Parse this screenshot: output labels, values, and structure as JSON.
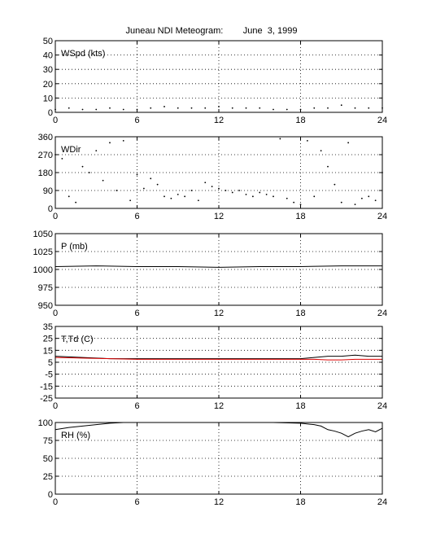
{
  "title": "Juneau NDI Meteogram:        June  3, 1999",
  "chart_data": [
    {
      "type": "scatter",
      "label": "WSpd (kts)",
      "ylim": [
        0,
        50
      ],
      "yticks": [
        0,
        10,
        20,
        30,
        40,
        50
      ],
      "xlim": [
        0,
        24
      ],
      "xticks": [
        0,
        6,
        12,
        18,
        24
      ],
      "grid": true,
      "series": [
        {
          "color": "#000000",
          "x": [
            0,
            1,
            2,
            3,
            4,
            5,
            6,
            7,
            8,
            9,
            10,
            11,
            12,
            13,
            14,
            15,
            16,
            17,
            18,
            19,
            20,
            21,
            22,
            23,
            24
          ],
          "values": [
            2,
            3,
            2,
            2,
            3,
            2,
            2,
            3,
            4,
            3,
            3,
            3,
            4,
            3,
            3,
            3,
            2,
            2,
            2,
            3,
            3,
            5,
            3,
            3,
            3
          ]
        }
      ]
    },
    {
      "type": "scatter",
      "label": "WDir",
      "ylim": [
        0,
        360
      ],
      "yticks": [
        0,
        90,
        180,
        270,
        360
      ],
      "xlim": [
        0,
        24
      ],
      "xticks": [
        0,
        6,
        12,
        18,
        24
      ],
      "grid": true,
      "series": [
        {
          "color": "#000000",
          "x": [
            0,
            0.5,
            1,
            1.5,
            2,
            2.5,
            3,
            3.5,
            4,
            4.5,
            5,
            5.5,
            6,
            6.5,
            7,
            7.5,
            8,
            8.5,
            9,
            9.5,
            10,
            10.5,
            11,
            11.5,
            12,
            12.5,
            13,
            13.5,
            14,
            14.5,
            15,
            15.5,
            16,
            16.5,
            17,
            17.5,
            18,
            18.5,
            19,
            19.5,
            20,
            20.5,
            21,
            21.5,
            22,
            22.5,
            23,
            23.5,
            24
          ],
          "values": [
            270,
            250,
            60,
            30,
            210,
            180,
            290,
            140,
            330,
            90,
            340,
            40,
            170,
            100,
            150,
            120,
            60,
            50,
            70,
            60,
            90,
            40,
            130,
            110,
            100,
            90,
            80,
            90,
            70,
            60,
            80,
            70,
            60,
            350,
            50,
            30,
            20,
            340,
            60,
            290,
            210,
            120,
            30,
            330,
            20,
            50,
            60,
            40,
            180
          ]
        }
      ]
    },
    {
      "type": "line",
      "label": "P (mb)",
      "ylim": [
        950,
        1050
      ],
      "yticks": [
        950,
        975,
        1000,
        1025,
        1050
      ],
      "xlim": [
        0,
        24
      ],
      "xticks": [
        0,
        6,
        12,
        18,
        24
      ],
      "grid": true,
      "series": [
        {
          "color": "#000000",
          "x": [
            0,
            3,
            6,
            9,
            12,
            15,
            18,
            21,
            24
          ],
          "values": [
            1004,
            1005,
            1004,
            1004,
            1003,
            1004,
            1004,
            1005,
            1005
          ]
        }
      ]
    },
    {
      "type": "line",
      "label": "T,Td (C)",
      "ylim": [
        -25,
        35
      ],
      "yticks": [
        -25,
        -15,
        -5,
        5,
        15,
        25,
        35
      ],
      "xlim": [
        0,
        24
      ],
      "xticks": [
        0,
        6,
        12,
        18,
        24
      ],
      "grid": true,
      "series": [
        {
          "color": "#000000",
          "x": [
            0,
            2,
            4,
            6,
            8,
            10,
            12,
            14,
            16,
            18,
            19,
            20,
            21,
            22,
            23,
            24
          ],
          "values": [
            10,
            9,
            8,
            8,
            8,
            8,
            8,
            8,
            8,
            8,
            9,
            10,
            10,
            11,
            10,
            10
          ]
        },
        {
          "color": "#dd0000",
          "x": [
            0,
            2,
            4,
            6,
            8,
            10,
            12,
            14,
            16,
            18,
            19,
            20,
            21,
            22,
            23,
            24
          ],
          "values": [
            9,
            8.5,
            8,
            7.5,
            7.5,
            7.5,
            7.5,
            7.5,
            7.5,
            7.5,
            7.5,
            7,
            7,
            7.5,
            7.5,
            7.5
          ]
        }
      ]
    },
    {
      "type": "line",
      "label": "RH (%)",
      "ylim": [
        0,
        100
      ],
      "yticks": [
        0,
        25,
        50,
        75,
        100
      ],
      "xlim": [
        0,
        24
      ],
      "xticks": [
        0,
        6,
        12,
        18,
        24
      ],
      "grid": true,
      "series": [
        {
          "color": "#000000",
          "x": [
            0,
            1,
            2,
            3,
            4,
            5,
            6,
            8,
            10,
            12,
            14,
            16,
            18,
            19,
            19.5,
            20,
            20.5,
            21,
            21.5,
            22,
            22.5,
            23,
            23.5,
            24
          ],
          "values": [
            90,
            93,
            95,
            97,
            99,
            100,
            100,
            100,
            100,
            100,
            100,
            100,
            99,
            97,
            95,
            90,
            88,
            85,
            80,
            85,
            88,
            90,
            87,
            92
          ]
        }
      ]
    }
  ]
}
